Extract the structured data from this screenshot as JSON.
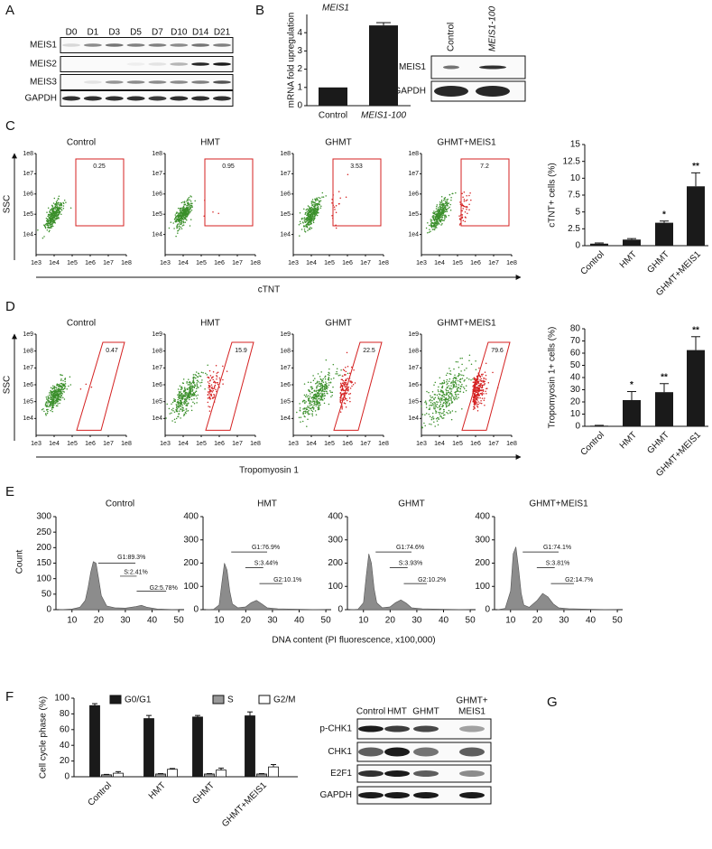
{
  "panel_labels": [
    "A",
    "B",
    "C",
    "D",
    "E",
    "F",
    "G"
  ],
  "blot_a": {
    "lanes": [
      "D0",
      "D1",
      "D3",
      "D5",
      "D7",
      "D10",
      "D14",
      "D21"
    ],
    "rows": [
      "MEIS1",
      "MEIS2",
      "MEIS3",
      "GAPDH"
    ]
  },
  "blot_b": {
    "lanes": [
      "Control",
      "MEIS1-100"
    ],
    "rows": [
      "MEIS1",
      "GAPDH"
    ]
  },
  "blot_g": {
    "lanes": [
      [
        "Control"
      ],
      [
        "HMT"
      ],
      [
        "GHMT"
      ],
      [
        "GHMT+",
        "MEIS1"
      ]
    ],
    "rows": [
      "p-CHK1",
      "CHK1",
      "E2F1",
      "GAPDH"
    ]
  },
  "flow": [
    {
      "x_label": "cTNT",
      "y_label": "SSC",
      "xticks": [
        "1e3",
        "1e4",
        "1e5",
        "1e6",
        "1e7",
        "1e8"
      ],
      "yticks": [
        "1e4",
        "1e5",
        "1e6",
        "1e7",
        "1e8"
      ],
      "plots": [
        {
          "title": "Control",
          "gate": 0.25
        },
        {
          "title": "HMT",
          "gate": 0.95
        },
        {
          "title": "GHMT",
          "gate": 3.53
        },
        {
          "title": "GHMT+MEIS1",
          "gate": 7.2
        }
      ]
    },
    {
      "x_label": "Tropomyosin 1",
      "y_label": "SSC",
      "xticks": [
        "1e3",
        "1e4",
        "1e5",
        "1e6",
        "1e7",
        "1e8"
      ],
      "yticks": [
        "1e4",
        "1e5",
        "1e6",
        "1e7",
        "1e8",
        "1e9"
      ],
      "plots": [
        {
          "title": "Control",
          "gate": 0.47
        },
        {
          "title": "HMT",
          "gate": 15.9
        },
        {
          "title": "GHMT",
          "gate": 22.5
        },
        {
          "title": "GHMT+MEIS1",
          "gate": 79.6
        }
      ]
    }
  ],
  "histogram_x_label": "DNA content (PI fluorescence, x100,000)",
  "histogram_y_label": "Count",
  "chart_data": [
    {
      "type": "bar",
      "title": "MEIS1",
      "ylabel": "mRNA fold upregulation",
      "categories": [
        "Control",
        "MEIS1-100"
      ],
      "values": [
        1,
        4.4
      ],
      "errors": [
        null,
        0.15
      ],
      "color": "#1a1a1a",
      "ylim": [
        0,
        5
      ],
      "yticks": [
        0,
        1,
        2,
        3,
        4
      ]
    },
    {
      "type": "bar",
      "ylabel": "cTNT+ cells (%)",
      "categories": [
        "Control",
        "HMT",
        "GHMT",
        "GHMT+MEIS1"
      ],
      "values": [
        0.3,
        0.9,
        3.4,
        8.8
      ],
      "errors": [
        0.1,
        0.15,
        0.25,
        2.0
      ],
      "significance": [
        null,
        null,
        "*",
        "**"
      ],
      "color": "#1a1a1a",
      "ylim": [
        0,
        15
      ],
      "yticks": [
        0,
        2.5,
        5,
        7.5,
        10,
        12.5,
        15
      ]
    },
    {
      "type": "bar",
      "ylabel": "Tropomyosin 1+ cells (%)",
      "categories": [
        "Control",
        "HMT",
        "GHMT",
        "GHMT+MEIS1"
      ],
      "values": [
        0.5,
        21.5,
        28,
        62.5
      ],
      "errors": [
        0.3,
        7,
        7,
        11
      ],
      "significance": [
        null,
        "*",
        "**",
        "**"
      ],
      "color": "#1a1a1a",
      "ylim": [
        0,
        80
      ],
      "yticks": [
        0,
        10,
        20,
        30,
        40,
        50,
        60,
        70,
        80
      ]
    },
    {
      "type": "area",
      "title": "Control",
      "color": "#8c8c8c",
      "x": [
        5,
        10,
        13,
        15,
        16,
        17,
        18,
        19,
        20,
        21,
        23,
        26,
        30,
        34,
        36,
        38,
        42,
        50
      ],
      "values": [
        0,
        2,
        8,
        30,
        70,
        120,
        155,
        150,
        100,
        45,
        12,
        6,
        5,
        10,
        14,
        8,
        2,
        0
      ],
      "annotations": [
        "G1:89.3%",
        "S:2.41%",
        "G2:5.78%"
      ],
      "xlim": [
        4,
        52
      ],
      "xticks": [
        10,
        20,
        30,
        40,
        50
      ],
      "ylim": [
        0,
        300
      ],
      "yticks": [
        0,
        50,
        100,
        150,
        200,
        250,
        300
      ]
    },
    {
      "type": "area",
      "title": "HMT",
      "color": "#8c8c8c",
      "x": [
        5,
        8,
        10,
        11,
        12,
        13,
        14,
        15,
        17,
        20,
        22,
        24,
        26,
        28,
        32,
        40,
        50
      ],
      "values": [
        0,
        2,
        20,
        110,
        200,
        170,
        80,
        25,
        8,
        12,
        30,
        40,
        25,
        8,
        4,
        2,
        0
      ],
      "annotations": [
        "G1:76.9%",
        "S:3.44%",
        "G2:10.1%"
      ],
      "xlim": [
        4,
        52
      ],
      "xticks": [
        10,
        20,
        30,
        40,
        50
      ],
      "ylim": [
        0,
        400
      ],
      "yticks": [
        0,
        100,
        200,
        300,
        400
      ]
    },
    {
      "type": "area",
      "title": "GHMT",
      "color": "#8c8c8c",
      "x": [
        5,
        8,
        10,
        11,
        12,
        13,
        14,
        15,
        17,
        20,
        22,
        24,
        26,
        28,
        32,
        40,
        50
      ],
      "values": [
        0,
        2,
        30,
        140,
        240,
        200,
        90,
        30,
        8,
        12,
        30,
        42,
        28,
        8,
        4,
        2,
        0
      ],
      "annotations": [
        "G1:74.6%",
        "S:3.93%",
        "G2:10.2%"
      ],
      "xlim": [
        4,
        52
      ],
      "xticks": [
        10,
        20,
        30,
        40,
        50
      ],
      "ylim": [
        0,
        400
      ],
      "yticks": [
        0,
        100,
        200,
        300,
        400
      ]
    },
    {
      "type": "area",
      "title": "GHMT+MEIS1",
      "color": "#8c8c8c",
      "x": [
        5,
        8,
        10,
        11,
        12,
        13,
        14,
        15,
        17,
        20,
        22,
        24,
        26,
        28,
        32,
        40,
        50
      ],
      "values": [
        0,
        5,
        80,
        240,
        270,
        180,
        70,
        20,
        10,
        40,
        70,
        55,
        25,
        8,
        4,
        2,
        0
      ],
      "annotations": [
        "G1:74.1%",
        "S:3.81%",
        "G2:14.7%"
      ],
      "xlim": [
        4,
        52
      ],
      "xticks": [
        10,
        20,
        30,
        40,
        50
      ],
      "ylim": [
        0,
        400
      ],
      "yticks": [
        0,
        100,
        200,
        300,
        400
      ]
    },
    {
      "type": "grouped_bar",
      "ylabel": "Cell cycle phase (%)",
      "categories": [
        "Control",
        "HMT",
        "GHMT",
        "GHMT+MEIS1"
      ],
      "series": [
        {
          "name": "G0/G1",
          "color": "#1a1a1a",
          "values": [
            90.5,
            74,
            76,
            77.5
          ],
          "errors": [
            2.5,
            4,
            2,
            5
          ]
        },
        {
          "name": "S",
          "color": "#999999",
          "values": [
            2.5,
            3.5,
            3.5,
            3.5
          ],
          "errors": [
            0.5,
            0.5,
            0.5,
            0.5
          ]
        },
        {
          "name": "G2/M",
          "color": "#ffffff",
          "values": [
            4.5,
            9.5,
            8.5,
            12.5
          ],
          "errors": [
            2,
            1,
            2.5,
            3
          ]
        }
      ],
      "ylim": [
        0,
        100
      ],
      "yticks": [
        0,
        20,
        40,
        60,
        80,
        100
      ]
    }
  ]
}
